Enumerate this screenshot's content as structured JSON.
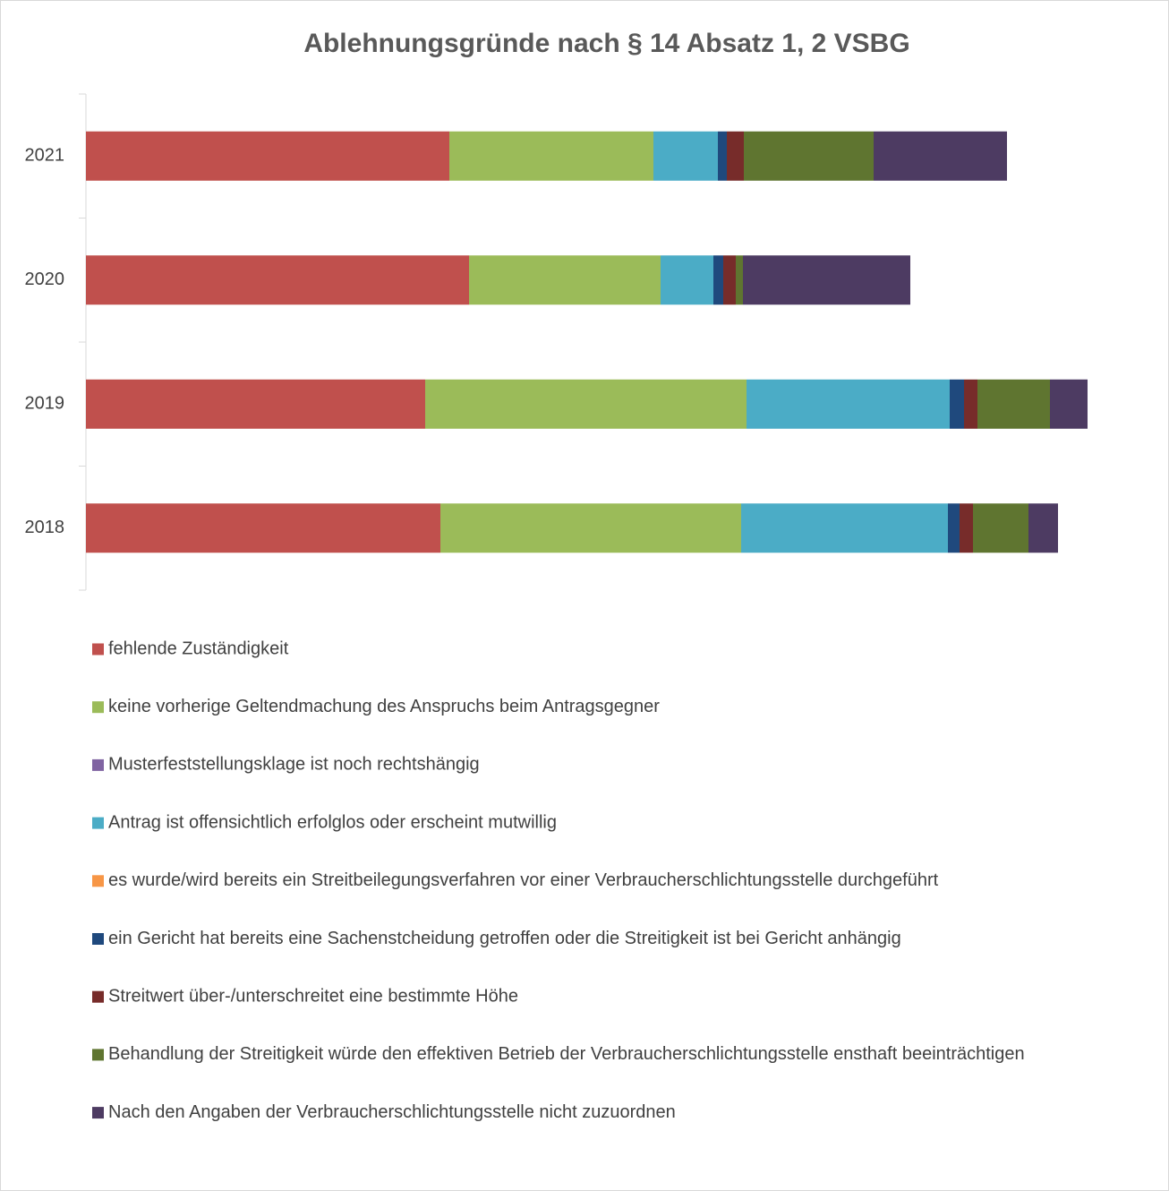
{
  "chart_data": {
    "type": "stacked_barh",
    "title": "Ablehnungsgründe nach § 14 Absatz 1, 2 VSBG",
    "categories": [
      "2018",
      "2019",
      "2020",
      "2021"
    ],
    "series": [
      {
        "name": "fehlende Zuständigkeit",
        "color": "#c0504d",
        "values": [
          396,
          379,
          428,
          406
        ]
      },
      {
        "name": "keine vorherige Geltendmachung des Anspruchs beim Antragsgegner",
        "color": "#9bbb59",
        "values": [
          336,
          359,
          214,
          228
        ]
      },
      {
        "name": "Musterfeststellungsklage ist noch rechtshängig",
        "color": "#8064a2",
        "values": [
          0,
          0,
          0,
          0
        ]
      },
      {
        "name": "Antrag ist offensichtlich erfolglos oder erscheint mutwillig",
        "color": "#4bacc6",
        "values": [
          231,
          227,
          59,
          72
        ]
      },
      {
        "name": "es wurde/wird bereits ein Streitbeilegungsverfahren vor einer Verbraucherschlichtungsstelle durchgeführt",
        "color": "#f79646",
        "values": [
          0,
          0,
          0,
          0
        ]
      },
      {
        "name": "ein Gericht hat bereits eine Sachenstcheidung getroffen oder die Streitigkeit ist bei Gericht anhängig",
        "color": "#1f497d",
        "values": [
          13,
          16,
          11,
          10
        ]
      },
      {
        "name": "Streitwert über-/unterschreitet eine bestimmte Höhe",
        "color": "#772c2a",
        "values": [
          15,
          15,
          14,
          19
        ]
      },
      {
        "name": "Behandlung der Streitigkeit würde den effektiven Betrieb der Verbraucherschlichtungsstelle ensthaft beeinträchtigen",
        "color": "#5f7530",
        "values": [
          62,
          81,
          8,
          145
        ]
      },
      {
        "name": "Nach den Angaben der Verbraucherschlichtungsstelle nicht zuzuordnen",
        "color": "#4d3b62",
        "values": [
          33,
          42,
          187,
          149
        ]
      }
    ],
    "xlim": [
      0,
      1200
    ]
  }
}
